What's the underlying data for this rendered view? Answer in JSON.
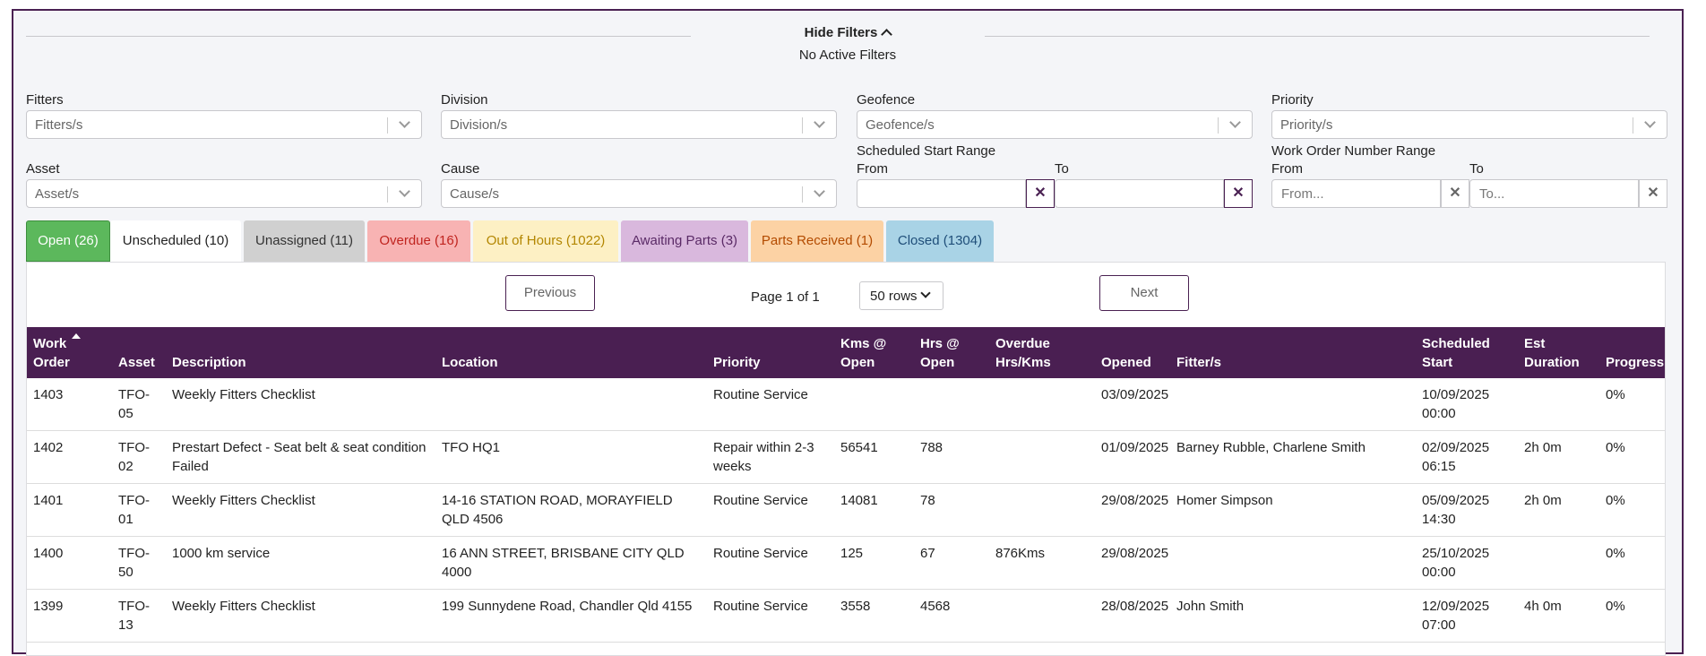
{
  "filters": {
    "hide_label": "Hide Filters",
    "status": "No Active Filters",
    "fitters": {
      "label": "Fitters",
      "placeholder": "Fitters/s"
    },
    "division": {
      "label": "Division",
      "placeholder": "Division/s"
    },
    "geofence": {
      "label": "Geofence",
      "placeholder": "Geofence/s"
    },
    "priority": {
      "label": "Priority",
      "placeholder": "Priority/s"
    },
    "asset": {
      "label": "Asset",
      "placeholder": "Asset/s"
    },
    "cause": {
      "label": "Cause",
      "placeholder": "Cause/s"
    },
    "scheduled_range": {
      "label": "Scheduled Start Range",
      "from_label": "From",
      "to_label": "To"
    },
    "wo_range": {
      "label": "Work Order Number Range",
      "from_label": "From",
      "to_label": "To",
      "from_placeholder": "From...",
      "to_placeholder": "To..."
    },
    "clear_glyph": "✕"
  },
  "tabs": [
    {
      "label": "Open (26)",
      "bg": "#5cb85c",
      "fg": "#ffffff",
      "border": "#3e8e3e"
    },
    {
      "label": "Unscheduled (10)",
      "bg": "#ffffff",
      "fg": "#222222",
      "border": "#ffffff"
    },
    {
      "label": "Unassigned (11)",
      "bg": "#d0d0d0",
      "fg": "#333333",
      "border": "#d0d0d0"
    },
    {
      "label": "Overdue (16)",
      "bg": "#f8b3b3",
      "fg": "#c0241f",
      "border": "#f8b3b3"
    },
    {
      "label": "Out of Hours (1022)",
      "bg": "#fdf0c4",
      "fg": "#b38600",
      "border": "#fdf0c4"
    },
    {
      "label": "Awaiting Parts (3)",
      "bg": "#d9b8dd",
      "fg": "#5a2a66",
      "border": "#d9b8dd"
    },
    {
      "label": "Parts Received (1)",
      "bg": "#fcd2a4",
      "fg": "#b34b00",
      "border": "#fcd2a4"
    },
    {
      "label": "Closed (1304)",
      "bg": "#a9d3e6",
      "fg": "#1f4e79",
      "border": "#a9d3e6"
    }
  ],
  "pagination": {
    "previous": "Previous",
    "next": "Next",
    "page_info": "Page 1 of 1",
    "rows": "50 rows"
  },
  "table": {
    "headers": {
      "work_order": [
        "Work",
        "Order"
      ],
      "asset": "Asset",
      "description": "Description",
      "location": "Location",
      "priority": "Priority",
      "kms_open": [
        "Kms @",
        "Open"
      ],
      "hrs_open": [
        "Hrs @",
        "Open"
      ],
      "overdue": [
        "Overdue",
        "Hrs/Kms"
      ],
      "opened": "Opened",
      "fitters": "Fitter/s",
      "scheduled": [
        "Scheduled",
        "Start"
      ],
      "est": [
        "Est",
        "Duration"
      ],
      "progress": "Progress"
    },
    "rows": [
      {
        "wo": "1403",
        "asset": "TFO-05",
        "desc": "Weekly Fitters Checklist",
        "loc": "",
        "priority": "Routine Service",
        "kms": "",
        "hrs": "",
        "overdue": "",
        "opened": "03/09/2025",
        "fitters": "",
        "sched": "10/09/2025 00:00",
        "sched_overdue": false,
        "est": "",
        "progress": "0%"
      },
      {
        "wo": "1402",
        "asset": "TFO-02",
        "desc": "Prestart Defect - Seat belt & seat condition Failed",
        "loc": "TFO HQ1",
        "priority": "Repair within 2-3 weeks",
        "kms": "56541",
        "hrs": "788",
        "overdue": "",
        "opened": "01/09/2025",
        "fitters": "Barney Rubble, Charlene Smith",
        "sched": "02/09/2025 06:15",
        "sched_overdue": true,
        "est": "2h 0m",
        "progress": "0%"
      },
      {
        "wo": "1401",
        "asset": "TFO-01",
        "desc": "Weekly Fitters Checklist",
        "loc": "14-16 STATION ROAD, MORAYFIELD QLD 4506",
        "priority": "Routine Service",
        "kms": "14081",
        "hrs": "78",
        "overdue": "",
        "opened": "29/08/2025",
        "fitters": "Homer Simpson",
        "sched": "05/09/2025 14:30",
        "sched_overdue": false,
        "est": "2h 0m",
        "progress": "0%"
      },
      {
        "wo": "1400",
        "asset": "TFO-50",
        "desc": "1000 km service",
        "loc": "16 ANN STREET, BRISBANE CITY QLD 4000",
        "priority": "Routine Service",
        "kms": "125",
        "hrs": "67",
        "overdue": "876Kms",
        "opened": "29/08/2025",
        "fitters": "",
        "sched": "25/10/2025 00:00",
        "sched_overdue": false,
        "est": "",
        "progress": "0%"
      },
      {
        "wo": "1399",
        "asset": "TFO-13",
        "desc": "Weekly Fitters Checklist",
        "loc": "199 Sunnydene Road, Chandler Qld 4155",
        "priority": "Routine Service",
        "kms": "3558",
        "hrs": "4568",
        "overdue": "",
        "opened": "28/08/2025",
        "fitters": "John Smith",
        "sched": "12/09/2025 07:00",
        "sched_overdue": false,
        "est": "4h 0m",
        "progress": "0%"
      }
    ]
  }
}
